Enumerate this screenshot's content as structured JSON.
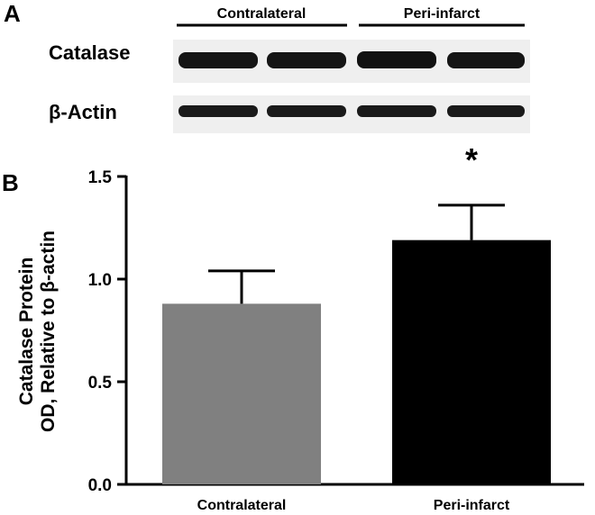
{
  "panel_a": {
    "letter": "A",
    "groups": [
      "Contralateral",
      "Peri-infarct"
    ],
    "blots": [
      {
        "label": "Catalase",
        "lanes": 4
      },
      {
        "label": "β-Actin",
        "lanes": 4
      }
    ]
  },
  "panel_b": {
    "letter": "B",
    "significance_marker": "*"
  },
  "chart_data": {
    "type": "bar",
    "title": "",
    "xlabel": "",
    "ylabel": "Catalase Protein OD, Relative to β-actin",
    "ylabel_lines": [
      "Catalase Protein",
      "OD, Relative to β-actin"
    ],
    "categories": [
      "Contralateral",
      "Peri-infarct"
    ],
    "values": [
      0.88,
      1.19
    ],
    "errors": [
      0.16,
      0.17
    ],
    "bar_colors": [
      "#808080",
      "#000000"
    ],
    "ylim": [
      0.0,
      1.5
    ],
    "yticks": [
      0.0,
      0.5,
      1.0,
      1.5
    ],
    "ytick_labels": [
      "0.0",
      "0.5",
      "1.0",
      "1.5"
    ],
    "annotations": [
      {
        "category": "Peri-infarct",
        "text": "*"
      }
    ],
    "grid": false,
    "legend": "none"
  }
}
